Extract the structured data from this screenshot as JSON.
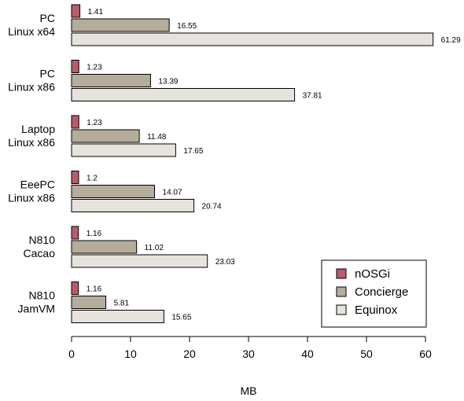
{
  "chart_data": {
    "type": "bar",
    "orientation": "horizontal",
    "categories": [
      [
        "PC",
        "Linux x64"
      ],
      [
        "PC",
        "Linux x86"
      ],
      [
        "Laptop",
        "Linux x86"
      ],
      [
        "EeePC",
        "Linux x86"
      ],
      [
        "N810",
        "Cacao"
      ],
      [
        "N810",
        "JamVM"
      ]
    ],
    "series": [
      {
        "name": "nOSGi",
        "color": "#b85c6c",
        "values": [
          1.41,
          1.23,
          1.23,
          1.2,
          1.16,
          1.16
        ],
        "value_labels": [
          "1.41",
          "1.23",
          "1.23",
          "1.2",
          "1.16",
          "1.16"
        ]
      },
      {
        "name": "Concierge",
        "color": "#b5ad9c",
        "values": [
          16.55,
          13.39,
          11.48,
          14.07,
          11.02,
          5.81
        ],
        "value_labels": [
          "16.55",
          "13.39",
          "11.48",
          "14.07",
          "11.02",
          "5.81"
        ]
      },
      {
        "name": "Equinox",
        "color": "#e5e3dc",
        "values": [
          61.29,
          37.81,
          17.65,
          20.74,
          23.03,
          15.65
        ],
        "value_labels": [
          "61.29",
          "37.81",
          "17.65",
          "20.74",
          "23.03",
          "15.65"
        ]
      }
    ],
    "xlabel": "MB",
    "xlim": [
      0,
      61.5
    ],
    "xticks": [
      "0",
      "10",
      "20",
      "30",
      "40",
      "50",
      "60"
    ],
    "legend": {
      "position": "bottom-right"
    },
    "grid": false
  }
}
